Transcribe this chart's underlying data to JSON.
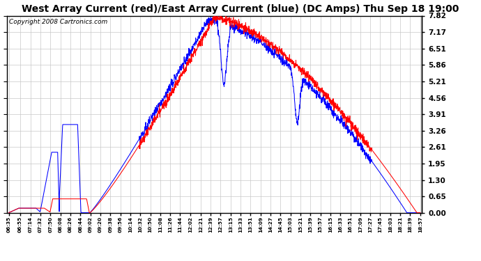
{
  "title": "West Array Current (red)/East Array Current (blue) (DC Amps) Thu Sep 18 19:00",
  "copyright": "Copyright 2008 Cartronics.com",
  "yticks": [
    0.0,
    0.65,
    1.3,
    1.95,
    2.61,
    3.26,
    3.91,
    4.56,
    5.21,
    5.86,
    6.51,
    7.17,
    7.82
  ],
  "ylim": [
    0.0,
    7.82
  ],
  "background_color": "#ffffff",
  "plot_bg_color": "#ffffff",
  "grid_color": "#c8c8c8",
  "title_fontsize": 10,
  "copyright_fontsize": 6.5,
  "red_color": "#ff0000",
  "blue_color": "#0000ff",
  "xtick_labels": [
    "06:35",
    "06:55",
    "07:14",
    "07:32",
    "07:50",
    "08:08",
    "08:26",
    "08:44",
    "09:02",
    "09:20",
    "09:38",
    "09:56",
    "10:14",
    "10:32",
    "10:50",
    "11:08",
    "11:26",
    "11:44",
    "12:02",
    "12:21",
    "12:39",
    "12:57",
    "13:15",
    "13:33",
    "13:51",
    "14:09",
    "14:27",
    "14:45",
    "15:03",
    "15:21",
    "15:39",
    "15:57",
    "16:15",
    "16:33",
    "16:51",
    "17:09",
    "17:27",
    "17:45",
    "18:03",
    "18:21",
    "18:39",
    "18:57"
  ]
}
